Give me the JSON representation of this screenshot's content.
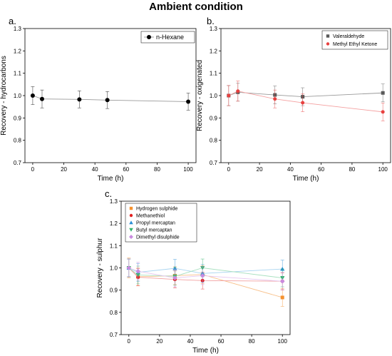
{
  "figure_title": "Ambient condition",
  "chart_data": [
    {
      "type": "line",
      "panel_label": "a.",
      "xlabel": "Time (h)",
      "ylabel": "Recovery - hydrocarbons",
      "xlim": [
        -5,
        105
      ],
      "ylim": [
        0.7,
        1.3
      ],
      "xticks": [
        0,
        20,
        40,
        60,
        80,
        100
      ],
      "yticks": [
        0.7,
        0.8,
        0.9,
        1.0,
        1.1,
        1.2,
        1.3
      ],
      "legend_position": "top-right",
      "grid": false,
      "series": [
        {
          "name": "n-Hexane",
          "color": "#000000",
          "line_color": "#9a9a9a",
          "marker": "circle",
          "x": [
            0,
            6,
            30,
            48,
            100
          ],
          "y": [
            1.0,
            0.985,
            0.983,
            0.98,
            0.973
          ],
          "err": [
            0.04,
            0.04,
            0.038,
            0.038,
            0.038
          ]
        }
      ]
    },
    {
      "type": "line",
      "panel_label": "b.",
      "xlabel": "Time (h)",
      "ylabel": "Recovery - oxigenated",
      "xlim": [
        -5,
        105
      ],
      "ylim": [
        0.7,
        1.3
      ],
      "xticks": [
        0,
        20,
        40,
        60,
        80,
        100
      ],
      "yticks": [
        0.7,
        0.8,
        0.9,
        1.0,
        1.1,
        1.2,
        1.3
      ],
      "legend_position": "top-right",
      "grid": false,
      "series": [
        {
          "name": "Valeraldehyde",
          "color": "#595959",
          "line_color": "#9a9a9a",
          "marker": "square",
          "x": [
            0,
            6,
            30,
            48,
            100
          ],
          "y": [
            1.0,
            1.015,
            1.003,
            0.995,
            1.012
          ],
          "err": [
            0.045,
            0.04,
            0.04,
            0.04,
            0.04
          ]
        },
        {
          "name": "Methyl Ethyl Ketone",
          "color": "#e8403f",
          "line_color": "#f4a0a0",
          "marker": "circle",
          "x": [
            0,
            6,
            30,
            48,
            100
          ],
          "y": [
            1.0,
            1.02,
            0.985,
            0.968,
            0.927
          ],
          "err": [
            0.045,
            0.045,
            0.04,
            0.04,
            0.04
          ]
        }
      ]
    },
    {
      "type": "line",
      "panel_label": "c.",
      "xlabel": "Time (h)",
      "ylabel": "Recovery - sulphur",
      "xlim": [
        -5,
        105
      ],
      "ylim": [
        0.7,
        1.3
      ],
      "xticks": [
        0,
        20,
        40,
        60,
        80,
        100
      ],
      "yticks": [
        0.7,
        0.8,
        0.9,
        1.0,
        1.1,
        1.2,
        1.3
      ],
      "legend_position": "top-left",
      "grid": false,
      "series": [
        {
          "name": "Hydrogen sulphide",
          "color": "#f5922f",
          "line_color": "#f8c08a",
          "marker": "square",
          "x": [
            0,
            6,
            30,
            48,
            100
          ],
          "y": [
            1.0,
            0.96,
            0.965,
            0.97,
            0.867
          ],
          "err": [
            0.045,
            0.04,
            0.04,
            0.04,
            0.04
          ]
        },
        {
          "name": "Methanethiol",
          "color": "#e32020",
          "line_color": "#f2a0a0",
          "marker": "circle",
          "x": [
            0,
            6,
            30,
            48,
            100
          ],
          "y": [
            1.0,
            0.958,
            0.948,
            0.943,
            0.94
          ],
          "err": [
            0.04,
            0.038,
            0.038,
            0.038,
            0.038
          ]
        },
        {
          "name": "Propyl mercaptan",
          "color": "#2a8fd6",
          "line_color": "#a8d4f0",
          "marker": "triangle-up",
          "x": [
            0,
            6,
            30,
            48,
            100
          ],
          "y": [
            1.0,
            0.98,
            0.998,
            0.975,
            0.995
          ],
          "err": [
            0.04,
            0.04,
            0.04,
            0.04,
            0.04
          ]
        },
        {
          "name": "Butyl mercaptan",
          "color": "#2fb36b",
          "line_color": "#a8e0c0",
          "marker": "triangle-down",
          "x": [
            0,
            6,
            30,
            48,
            100
          ],
          "y": [
            1.0,
            0.968,
            0.962,
            1.0,
            0.955
          ],
          "err": [
            0.04,
            0.04,
            0.04,
            0.04,
            0.04
          ]
        },
        {
          "name": "Dimethyl disulphide",
          "color": "#c98be0",
          "line_color": "#e6c6f0",
          "marker": "diamond",
          "x": [
            0,
            6,
            30,
            48,
            100
          ],
          "y": [
            1.0,
            0.985,
            0.955,
            0.965,
            0.94
          ],
          "err": [
            0.04,
            0.04,
            0.04,
            0.04,
            0.04
          ]
        }
      ]
    }
  ]
}
